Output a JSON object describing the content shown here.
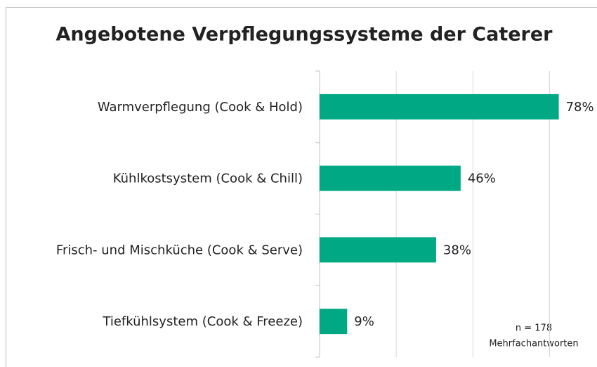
{
  "chart_data": {
    "type": "barh",
    "title": "Angebotene Verpflegungssysteme der Caterer",
    "categories": [
      "Warmverpflegung (Cook & Hold)",
      "Kühlkostsystem (Cook & Chill)",
      "Frisch- und Mischküche (Cook & Serve)",
      "Tiefkühlsystem (Cook & Freeze)"
    ],
    "values": [
      78,
      46,
      38,
      9
    ],
    "value_labels": [
      "78%",
      "46%",
      "38%",
      "9%"
    ],
    "color": "#00a984",
    "xlim": [
      0,
      90
    ],
    "xticks": [
      0,
      25,
      50,
      75
    ],
    "grid": true,
    "annotations": [
      "n = 178",
      "Mehrfachantworten"
    ]
  }
}
